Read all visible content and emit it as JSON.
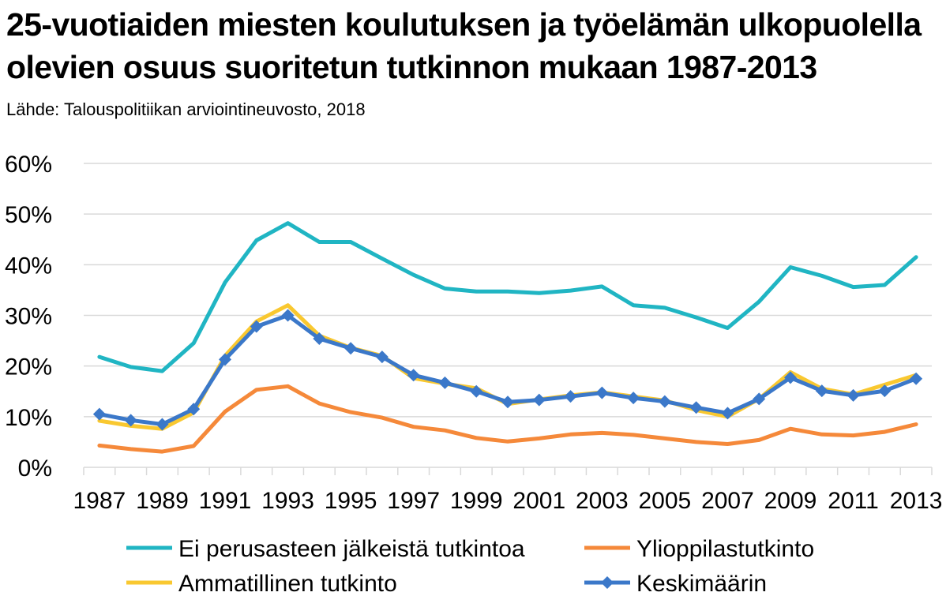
{
  "title_lines": [
    "25-vuotiaiden miesten koulutuksen ja työelämän ulkopuolella",
    "olevien osuus suoritetun tutkinnon mukaan 1987-2013"
  ],
  "subtitle": "Lähde: Talouspolitiikan arviointineuvosto, 2018",
  "chart_data": {
    "type": "line",
    "title": "25-vuotiaiden miesten koulutuksen ja työelämän ulkopuolella olevien osuus suoritetun tutkinnon mukaan 1987-2013",
    "subtitle": "Lähde: Talouspolitiikan arviointineuvosto, 2018",
    "xlabel": "",
    "ylabel": "",
    "x": [
      1987,
      1988,
      1989,
      1990,
      1991,
      1992,
      1993,
      1994,
      1995,
      1996,
      1997,
      1998,
      1999,
      2000,
      2001,
      2002,
      2003,
      2004,
      2005,
      2006,
      2007,
      2008,
      2009,
      2010,
      2011,
      2012,
      2013
    ],
    "x_tick_labels": [
      "1987",
      "1989",
      "1991",
      "1993",
      "1995",
      "1997",
      "1999",
      "2001",
      "2003",
      "2005",
      "2007",
      "2009",
      "2011",
      "2013"
    ],
    "ylim": [
      0,
      60
    ],
    "y_ticks": [
      0,
      10,
      20,
      30,
      40,
      50,
      60
    ],
    "y_tick_labels": [
      "0%",
      "10%",
      "20%",
      "30%",
      "40%",
      "50%",
      "60%"
    ],
    "grid": "horizontal",
    "legend_position": "bottom",
    "series": [
      {
        "name": "Ei perusasteen jälkeistä tutkintoa",
        "color": "#20B5C3",
        "marker": "none",
        "values": [
          21.8,
          19.8,
          19.0,
          24.5,
          36.5,
          44.8,
          48.2,
          44.5,
          44.5,
          41.2,
          38.0,
          35.3,
          34.7,
          34.7,
          34.4,
          34.9,
          35.7,
          32.0,
          31.5,
          29.6,
          27.5,
          32.7,
          39.5,
          37.8,
          35.6,
          36.0,
          41.5
        ]
      },
      {
        "name": "Ylioppilastutkinto",
        "color": "#F5893A",
        "marker": "none",
        "values": [
          4.3,
          3.6,
          3.1,
          4.2,
          11.0,
          15.3,
          16.0,
          12.6,
          10.9,
          9.8,
          8.0,
          7.3,
          5.8,
          5.1,
          5.7,
          6.5,
          6.8,
          6.4,
          5.7,
          5.0,
          4.6,
          5.4,
          7.6,
          6.5,
          6.3,
          7.0,
          8.5
        ]
      },
      {
        "name": "Ammatillinen tutkinto",
        "color": "#F9C830",
        "marker": "none",
        "values": [
          9.2,
          8.2,
          7.6,
          10.8,
          22.0,
          28.8,
          32.0,
          26.0,
          23.6,
          22.0,
          17.6,
          16.5,
          15.6,
          12.5,
          13.4,
          14.2,
          14.8,
          14.0,
          13.2,
          11.3,
          10.0,
          13.5,
          18.8,
          15.5,
          14.4,
          16.3,
          18.2
        ]
      },
      {
        "name": "Keskimäärin",
        "color": "#3B78C9",
        "marker": "diamond",
        "values": [
          10.5,
          9.3,
          8.5,
          11.5,
          21.3,
          27.8,
          30.0,
          25.4,
          23.5,
          21.8,
          18.2,
          16.7,
          15.0,
          12.9,
          13.3,
          14.0,
          14.7,
          13.7,
          13.0,
          11.8,
          10.7,
          13.5,
          17.7,
          15.1,
          14.2,
          15.1,
          17.5
        ]
      }
    ]
  }
}
